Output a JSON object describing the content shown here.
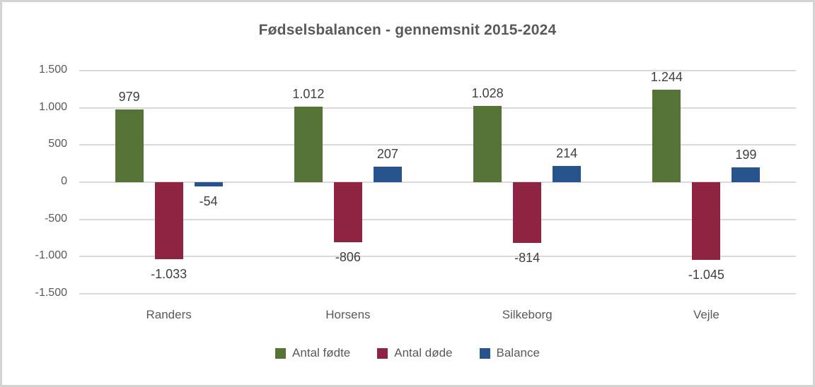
{
  "chart_data": {
    "type": "bar",
    "title": "Fødselsbalancen - gennemsnit 2015-2024",
    "categories": [
      "Randers",
      "Horsens",
      "Silkeborg",
      "Vejle"
    ],
    "series": [
      {
        "name": "Antal fødte",
        "color": "#567336",
        "values": [
          979,
          1012,
          1028,
          1244
        ],
        "labels": [
          "979",
          "1.012",
          "1.028",
          "1.244"
        ]
      },
      {
        "name": "Antal døde",
        "color": "#8e2342",
        "values": [
          -1033,
          -806,
          -814,
          -1045
        ],
        "labels": [
          "-1.033",
          "-806",
          "-814",
          "-1.045"
        ]
      },
      {
        "name": "Balance",
        "color": "#27548c",
        "values": [
          -54,
          207,
          214,
          199
        ],
        "labels": [
          "-54",
          "207",
          "214",
          "199"
        ]
      }
    ],
    "y_axis": {
      "min": -1500,
      "max": 1500,
      "tick_values": [
        1500,
        1000,
        500,
        0,
        -500,
        -1000,
        -1500
      ],
      "tick_labels": [
        "1.500",
        "1.000",
        "500",
        "0",
        "-500",
        "-1.000",
        "-1.500"
      ]
    },
    "grid": true,
    "legend_position": "bottom",
    "colors": {
      "gridline": "#d9d9d9",
      "axis_text": "#595959",
      "data_label_text": "#404040",
      "title_text": "#595959",
      "frame_border": "#d3d3d1"
    }
  }
}
